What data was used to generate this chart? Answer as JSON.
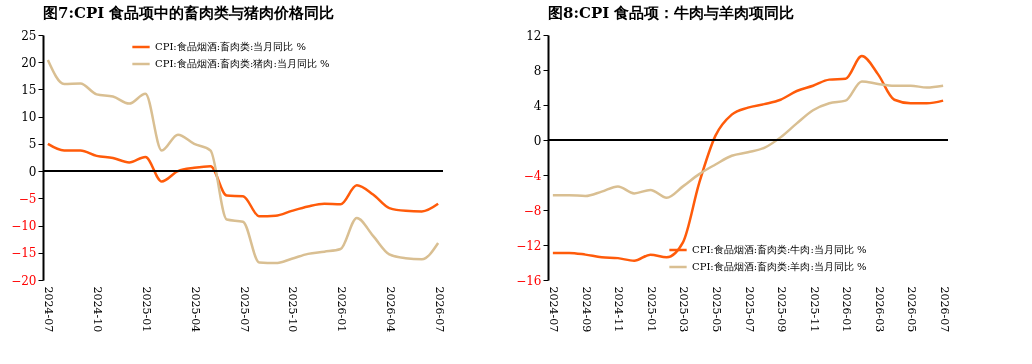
{
  "chart_data": [
    {
      "type": "line",
      "title": "图7:CPI 食品项中的畜肉类与猪肉价格同比",
      "categories": [
        "2024-07",
        null,
        null,
        "2024-10",
        null,
        null,
        "2025-01",
        null,
        null,
        "2025-04",
        null,
        null,
        "2025-07",
        null,
        null,
        "2025-10",
        null,
        null,
        "2026-01",
        null,
        null,
        "2026-04",
        null,
        null,
        "2026-07"
      ],
      "series": [
        {
          "name": "CPI:食品烟酒:畜肉类:当月同比 %",
          "color": "#ff5b0a",
          "values": [
            5.0,
            3.8,
            3.8,
            2.8,
            2.4,
            1.6,
            2.6,
            -1.9,
            0.0,
            0.6,
            0.9,
            -4.5,
            -4.6,
            -8.3,
            -8.2,
            -7.3,
            -6.5,
            -6.0,
            -6.1,
            -2.6,
            -4.3,
            -6.8,
            -7.3,
            -7.4,
            -6.0
          ]
        },
        {
          "name": "CPI:食品烟酒:畜肉类:猪肉:当月同比 %",
          "color": "#d9bf92",
          "values": [
            20.4,
            16.0,
            16.1,
            14.1,
            13.7,
            12.4,
            14.2,
            3.8,
            6.7,
            5.0,
            3.8,
            -8.9,
            -9.3,
            -16.8,
            -16.9,
            -16.1,
            -15.2,
            -14.8,
            -14.3,
            -8.6,
            -11.9,
            -15.3,
            -16.0,
            -16.2,
            -13.2
          ]
        }
      ],
      "ylim": [
        -20,
        25
      ],
      "yticks": [
        -20,
        -15,
        -10,
        -5,
        0,
        5,
        10,
        15,
        20,
        25
      ],
      "ref_lines": [
        {
          "axis": "y",
          "value": 0
        }
      ],
      "grid": false,
      "legend": "top",
      "line_style": "solid",
      "marker": "none"
    },
    {
      "type": "line",
      "title": "图8:CPI 食品项：牛肉与羊肉项同比",
      "categories": [
        "2024-07",
        null,
        "2024-09",
        null,
        "2024-11",
        null,
        "2025-01",
        null,
        "2025-03",
        null,
        "2025-05",
        null,
        "2025-07",
        null,
        "2025-09",
        null,
        "2025-11",
        null,
        "2026-01",
        null,
        "2026-03",
        null,
        "2026-05",
        null,
        "2026-07"
      ],
      "series": [
        {
          "name": "CPI:食品烟酒:畜肉类:牛肉:当月同比 %",
          "color": "#ff5b0a",
          "values": [
            -12.9,
            -12.9,
            -13.1,
            -13.4,
            -13.5,
            -13.8,
            -13.1,
            -13.4,
            -11.7,
            -4.9,
            0.5,
            2.9,
            3.7,
            4.1,
            4.6,
            5.6,
            6.2,
            6.9,
            7.0,
            9.6,
            7.5,
            4.6,
            4.2,
            4.2,
            4.5
          ]
        },
        {
          "name": "CPI:食品烟酒:畜肉类:羊肉:当月同比 %",
          "color": "#d9bf92",
          "values": [
            -6.3,
            -6.3,
            -6.4,
            -5.9,
            -5.3,
            -6.1,
            -5.7,
            -6.6,
            -5.3,
            -3.9,
            -2.8,
            -1.8,
            -1.4,
            -0.9,
            0.3,
            1.9,
            3.4,
            4.2,
            4.5,
            6.7,
            6.4,
            6.2,
            6.2,
            6.0,
            6.2
          ]
        }
      ],
      "ylim": [
        -16,
        12
      ],
      "yticks": [
        -16,
        -12,
        -8,
        -4,
        0,
        4,
        8,
        12
      ],
      "ref_lines": [
        {
          "axis": "y",
          "value": 0
        }
      ],
      "grid": false,
      "legend": "bottom right",
      "line_style": "solid",
      "marker": "none"
    }
  ]
}
